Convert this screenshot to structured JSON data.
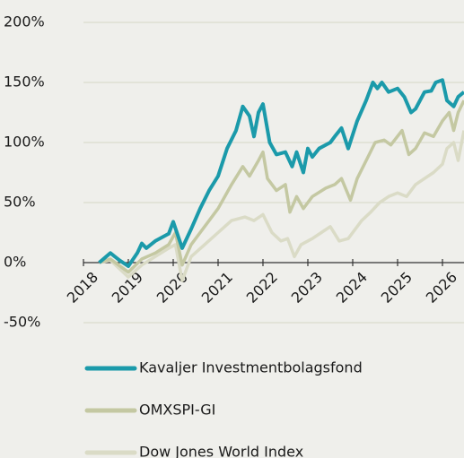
{
  "chart_data": {
    "type": "line",
    "xlim": [
      2018,
      2026.48
    ],
    "xticks": [
      2018,
      2019,
      2020,
      2021,
      2022,
      2023,
      2024,
      2025,
      2026
    ],
    "ylim": [
      -50,
      200
    ],
    "yticks": [
      {
        "value": -50,
        "label": "-50%"
      },
      {
        "value": 0,
        "label": "0%"
      },
      {
        "value": 50,
        "label": "50%"
      },
      {
        "value": 100,
        "label": "100%"
      },
      {
        "value": 150,
        "label": "150%"
      },
      {
        "value": 200,
        "label": "200%"
      }
    ],
    "grid": true,
    "legend": "bottom",
    "series": [
      {
        "name": "Kavaljer Investmentbolagsfond",
        "color": "#1b9aaa",
        "x": [
          2018.35,
          2018.6,
          2018.8,
          2019.0,
          2019.2,
          2019.3,
          2019.4,
          2019.6,
          2019.9,
          2020.0,
          2020.2,
          2020.4,
          2020.6,
          2020.8,
          2021.0,
          2021.2,
          2021.4,
          2021.55,
          2021.7,
          2021.8,
          2021.9,
          2022.0,
          2022.15,
          2022.3,
          2022.5,
          2022.65,
          2022.75,
          2022.9,
          2023.0,
          2023.1,
          2023.25,
          2023.5,
          2023.6,
          2023.75,
          2023.9,
          2024.1,
          2024.3,
          2024.45,
          2024.55,
          2024.65,
          2024.8,
          2025.0,
          2025.15,
          2025.3,
          2025.4,
          2025.6,
          2025.75,
          2025.85,
          2026.0,
          2026.1,
          2026.25,
          2026.35,
          2026.48
        ],
        "values": [
          0,
          8,
          2,
          -3,
          8,
          16,
          12,
          18,
          24,
          34,
          12,
          28,
          45,
          60,
          72,
          95,
          110,
          130,
          122,
          105,
          125,
          132,
          100,
          90,
          92,
          80,
          92,
          75,
          95,
          88,
          95,
          100,
          105,
          112,
          95,
          118,
          135,
          150,
          145,
          150,
          142,
          145,
          138,
          125,
          128,
          142,
          143,
          150,
          152,
          135,
          130,
          138,
          142
        ]
      },
      {
        "name": "OMXSPI-GI",
        "color": "#c4c8a2",
        "x": [
          2018.35,
          2018.6,
          2019.0,
          2019.3,
          2019.6,
          2019.9,
          2020.05,
          2020.2,
          2020.4,
          2020.7,
          2021.0,
          2021.3,
          2021.55,
          2021.7,
          2021.9,
          2022.0,
          2022.1,
          2022.3,
          2022.5,
          2022.6,
          2022.75,
          2022.9,
          2023.1,
          2023.4,
          2023.6,
          2023.75,
          2023.95,
          2024.1,
          2024.3,
          2024.5,
          2024.7,
          2024.85,
          2025.1,
          2025.25,
          2025.4,
          2025.6,
          2025.8,
          2026.0,
          2026.15,
          2026.25,
          2026.35,
          2026.48
        ],
        "values": [
          0,
          3,
          -8,
          3,
          8,
          15,
          25,
          -2,
          15,
          30,
          45,
          65,
          80,
          72,
          85,
          92,
          70,
          60,
          65,
          42,
          55,
          45,
          55,
          62,
          65,
          70,
          52,
          70,
          85,
          100,
          102,
          98,
          110,
          90,
          95,
          108,
          105,
          118,
          125,
          110,
          125,
          135
        ]
      },
      {
        "name": "Dow Jones World Index",
        "color": "#dadbc6",
        "x": [
          2018.35,
          2018.6,
          2019.0,
          2019.3,
          2019.6,
          2019.9,
          2020.05,
          2020.2,
          2020.4,
          2020.7,
          2021.0,
          2021.3,
          2021.6,
          2021.8,
          2022.0,
          2022.2,
          2022.4,
          2022.55,
          2022.7,
          2022.85,
          2023.1,
          2023.3,
          2023.5,
          2023.7,
          2023.9,
          2024.2,
          2024.4,
          2024.6,
          2024.8,
          2025.0,
          2025.2,
          2025.4,
          2025.6,
          2025.8,
          2026.0,
          2026.1,
          2026.25,
          2026.35,
          2026.48
        ],
        "values": [
          0,
          2,
          -12,
          -2,
          5,
          12,
          15,
          -15,
          5,
          15,
          25,
          35,
          38,
          35,
          40,
          25,
          18,
          20,
          5,
          15,
          20,
          25,
          30,
          18,
          20,
          35,
          42,
          50,
          55,
          58,
          55,
          65,
          70,
          75,
          82,
          95,
          100,
          85,
          110
        ]
      }
    ]
  }
}
